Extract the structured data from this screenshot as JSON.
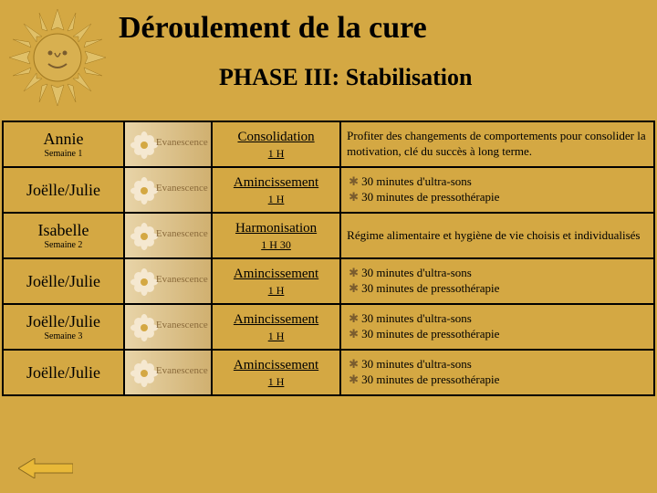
{
  "title": "Déroulement de la cure",
  "subtitle": "PHASE III: Stabilisation",
  "logo_text": "Evanescence",
  "colors": {
    "background": "#d4a843",
    "border": "#000000",
    "star": "#7a5c2e",
    "logo_bg1": "#e8d4a8",
    "logo_bg2": "#d0b070",
    "flower_petal": "#f5e8d0",
    "flower_center": "#d4a843",
    "sun_ray": "#e0c068",
    "sun_face": "#c89830",
    "arrow": "#e8b838"
  },
  "rows": [
    {
      "person": "Annie",
      "semaine": "Semaine 1",
      "type": "Consolidation",
      "duration": "1 H",
      "desc_bulleted": false,
      "desc": "Profiter des changements de comportements pour consolider la motivation, clé du succès à long terme."
    },
    {
      "person": "Joëlle/Julie",
      "semaine": "",
      "type": "Amincissement",
      "duration": "1 H",
      "desc_bulleted": true,
      "bullets": [
        "30 minutes d'ultra-sons",
        "30 minutes de pressothérapie"
      ]
    },
    {
      "person": "Isabelle",
      "semaine": "Semaine 2",
      "type": "Harmonisation",
      "duration": "1 H 30",
      "desc_bulleted": false,
      "desc": "Régime alimentaire et hygiène de vie choisis et individualisés"
    },
    {
      "person": "Joëlle/Julie",
      "semaine": "",
      "type": "Amincissement",
      "duration": "1 H",
      "desc_bulleted": true,
      "bullets": [
        "30 minutes d'ultra-sons",
        "30 minutes de pressothérapie"
      ]
    },
    {
      "person": "Joëlle/Julie",
      "semaine": "Semaine 3",
      "type": "Amincissement",
      "duration": "1 H",
      "desc_bulleted": true,
      "bullets": [
        "30 minutes d'ultra-sons",
        "30 minutes de pressothérapie"
      ]
    },
    {
      "person": "Joëlle/Julie",
      "semaine": "",
      "type": "Amincissement",
      "duration": "1 H",
      "desc_bulleted": true,
      "bullets": [
        "30 minutes d'ultra-sons",
        "30 minutes de pressothérapie"
      ]
    }
  ]
}
